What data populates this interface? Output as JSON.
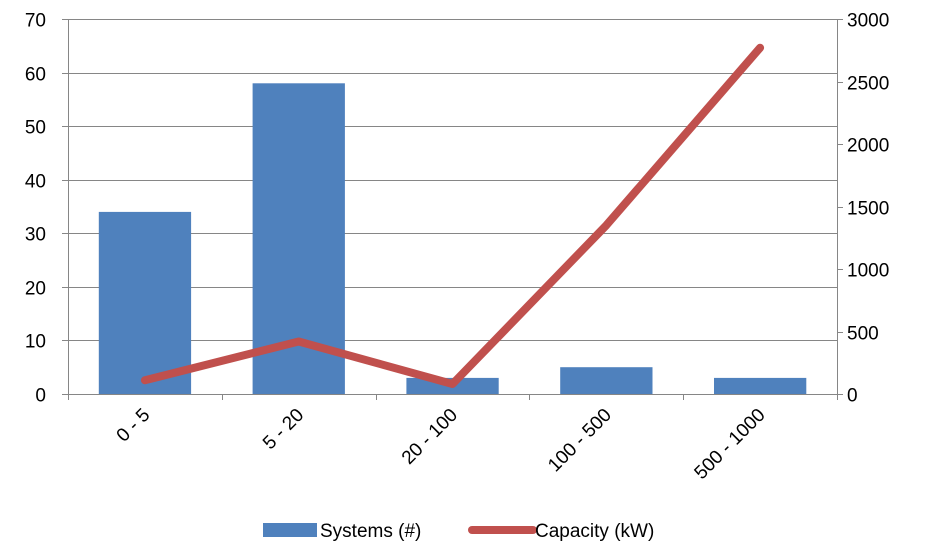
{
  "chart_data": {
    "type": "bar",
    "categories": [
      "0 - 5",
      "5 - 20",
      "20 - 100",
      "100 - 500",
      "500 - 1000"
    ],
    "series": [
      {
        "name": "Systems (#)",
        "type": "bar",
        "axis": "left",
        "color": "#4f81bd",
        "values": [
          34,
          58,
          3,
          5,
          3
        ]
      },
      {
        "name": "Capacity (kW)",
        "type": "line",
        "axis": "right",
        "color": "#c0504d",
        "values": [
          110,
          420,
          80,
          1350,
          2770
        ]
      }
    ],
    "y_left": {
      "min": 0,
      "max": 70,
      "ticks": [
        0,
        10,
        20,
        30,
        40,
        50,
        60,
        70
      ]
    },
    "y_right": {
      "min": 0,
      "max": 3000,
      "ticks": [
        0,
        500,
        1000,
        1500,
        2000,
        2500,
        3000
      ]
    },
    "grid": true,
    "legend_position": "bottom",
    "x_tick_rotation": "diagonal"
  }
}
